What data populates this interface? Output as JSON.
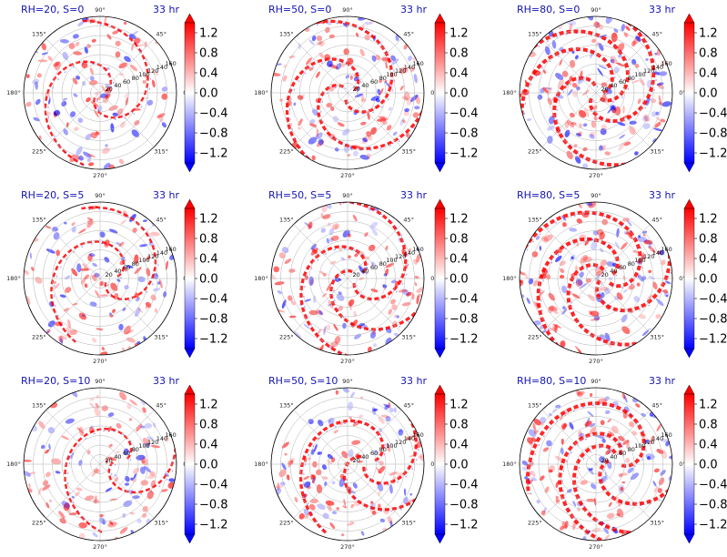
{
  "colors": {
    "positive": "#ff0000",
    "negative": "#0000ff",
    "title": "#1414b4"
  },
  "chart_data": {
    "type": "heatmap",
    "projection": "polar",
    "colormap": "bwr",
    "color_range": [
      -1.4,
      1.4
    ],
    "angle_ticks": [
      "0°",
      "45°",
      "90°",
      "135°",
      "180°",
      "225°",
      "270°",
      "315°"
    ],
    "radial_ticks": [
      "20",
      "40",
      "60",
      "80",
      "100",
      "120",
      "140",
      "160"
    ],
    "colorbar_ticks": [
      "1.2",
      "0.8",
      "0.4",
      "0.0",
      "−0.4",
      "−0.8",
      "−1.2"
    ],
    "colorbar_tick_values": [
      1.2,
      0.8,
      0.4,
      0.0,
      -0.4,
      -0.8,
      -1.2
    ],
    "panels": [
      {
        "title": "RH=20, S=0",
        "time": "33 hr",
        "rh": 20,
        "shear": 0
      },
      {
        "title": "RH=50, S=0",
        "time": "33 hr",
        "rh": 50,
        "shear": 0
      },
      {
        "title": "RH=80, S=0",
        "time": "33 hr",
        "rh": 80,
        "shear": 0
      },
      {
        "title": "RH=20, S=5",
        "time": "33 hr",
        "rh": 20,
        "shear": 5
      },
      {
        "title": "RH=50, S=5",
        "time": "33 hr",
        "rh": 50,
        "shear": 5
      },
      {
        "title": "RH=80, S=5",
        "time": "33 hr",
        "rh": 80,
        "shear": 5
      },
      {
        "title": "RH=20, S=10",
        "time": "33 hr",
        "rh": 20,
        "shear": 10
      },
      {
        "title": "RH=50, S=10",
        "time": "33 hr",
        "rh": 50,
        "shear": 10
      },
      {
        "title": "RH=80, S=10",
        "time": "33 hr",
        "rh": 80,
        "shear": 10
      }
    ]
  }
}
